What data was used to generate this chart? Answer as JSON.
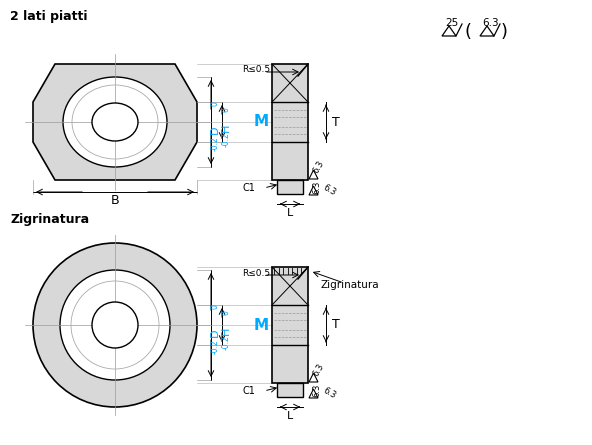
{
  "bg_color": "#ffffff",
  "title1": "2 lati piatti",
  "title2": "Zigrinatura",
  "label_M": "M",
  "label_R": "R≤0.5",
  "label_C1": "C1",
  "label_B": "B",
  "label_T": "T",
  "label_L": "L",
  "label_D": "D",
  "label_H": "H",
  "label_D_tol": "-0.2",
  "label_H_tol": "-0.2",
  "label_63": "6.3",
  "label_25": "25",
  "label_Zig": "Zigrinatura",
  "cyan_color": "#00aaff",
  "gray_fill": "#d8d8d8",
  "line_color": "#000000"
}
